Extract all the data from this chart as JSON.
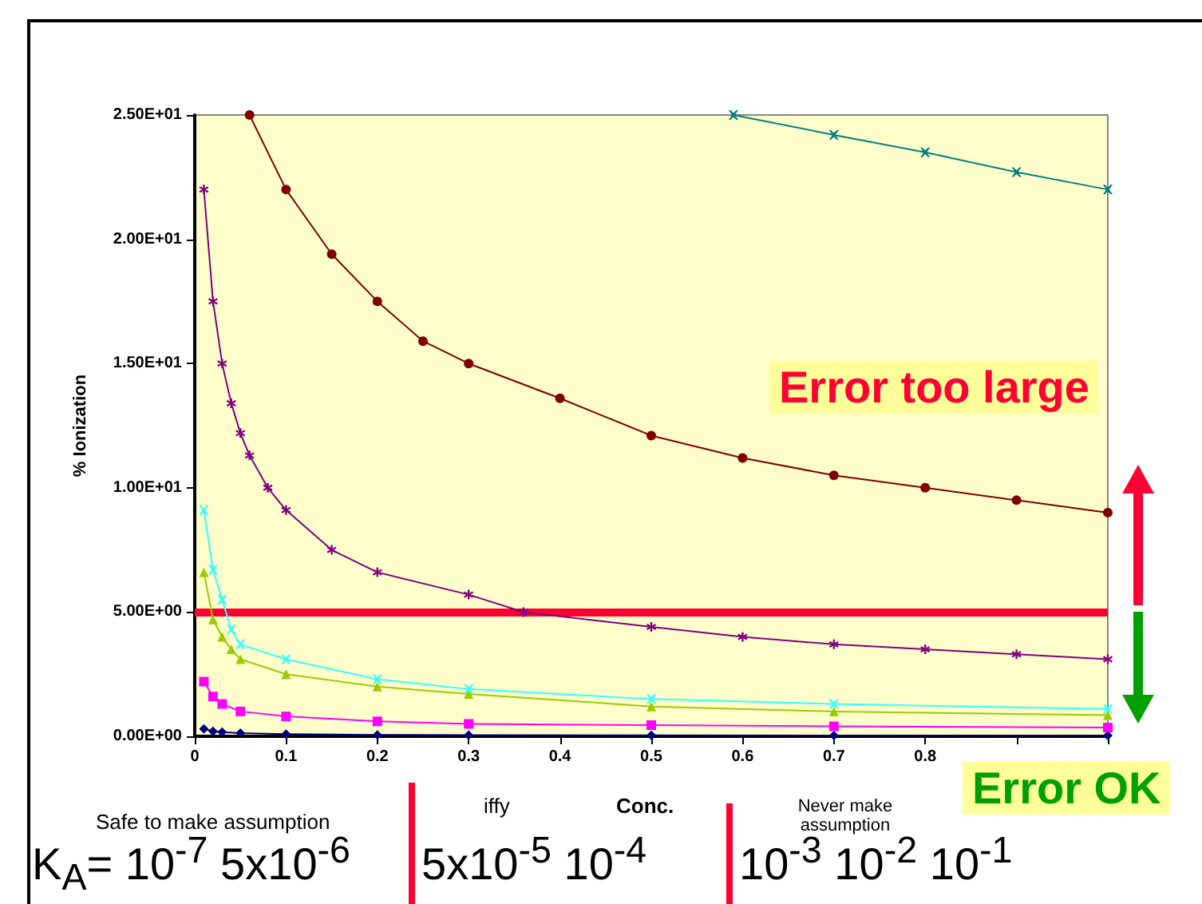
{
  "chart_data": {
    "type": "line",
    "xlabel": "Conc.",
    "ylabel": "% Ionization",
    "xlim": [
      0,
      1
    ],
    "xticks": [
      0,
      0.1,
      0.2,
      0.3,
      0.4,
      0.5,
      0.6,
      0.7,
      0.8,
      {
        "value": 0.9,
        "label": null
      },
      {
        "value": 1,
        "label": null
      }
    ],
    "ylim": [
      0,
      25
    ],
    "yticks": [
      {
        "value": 0,
        "label": "0.00E+00"
      },
      {
        "value": 5,
        "label": "5.00E+00"
      },
      {
        "value": 10,
        "label": "1.00E+01"
      },
      {
        "value": 15,
        "label": "1.50E+01"
      },
      {
        "value": 20,
        "label": "2.00E+01"
      },
      {
        "value": 25,
        "label": "2.50E+01"
      }
    ],
    "grid": false,
    "series": [
      {
        "color": "#000080",
        "marker": "diamond",
        "x": [
          0.01,
          0.02,
          0.03,
          0.05,
          0.1,
          0.2,
          0.3,
          0.5,
          0.7,
          1
        ],
        "values": [
          0.3,
          0.2,
          0.17,
          0.13,
          0.09,
          0.06,
          0.05,
          0.04,
          0.03,
          0.03
        ]
      },
      {
        "color": "#ff00ff",
        "marker": "square",
        "x": [
          0.01,
          0.02,
          0.03,
          0.05,
          0.1,
          0.2,
          0.3,
          0.5,
          0.7,
          1
        ],
        "values": [
          2.2,
          1.6,
          1.3,
          1.0,
          0.8,
          0.6,
          0.5,
          0.45,
          0.4,
          0.35
        ]
      },
      {
        "color": "#99cc00",
        "marker": "triangle",
        "x": [
          0.01,
          0.02,
          0.03,
          0.04,
          0.05,
          0.1,
          0.2,
          0.3,
          0.5,
          0.7,
          1
        ],
        "values": [
          6.6,
          4.7,
          4.0,
          3.5,
          3.1,
          2.5,
          2.0,
          1.7,
          1.2,
          1.0,
          0.85
        ]
      },
      {
        "color": "#33ffff",
        "marker": "cross",
        "x": [
          0.01,
          0.02,
          0.03,
          0.04,
          0.05,
          0.1,
          0.2,
          0.3,
          0.5,
          0.7,
          1
        ],
        "values": [
          9.1,
          6.7,
          5.5,
          4.3,
          3.7,
          3.1,
          2.3,
          1.9,
          1.5,
          1.3,
          1.1
        ]
      },
      {
        "color": "#800080",
        "marker": "star",
        "x": [
          0.01,
          0.02,
          0.03,
          0.04,
          0.05,
          0.06,
          0.08,
          0.1,
          0.15,
          0.2,
          0.3,
          0.36,
          0.5,
          0.6,
          0.7,
          0.8,
          0.9,
          1
        ],
        "values": [
          22,
          17.5,
          15,
          13.4,
          12.2,
          11.3,
          10,
          9.1,
          7.5,
          6.6,
          5.7,
          5.0,
          4.4,
          4.0,
          3.7,
          3.5,
          3.3,
          3.1
        ]
      },
      {
        "color": "#800000",
        "marker": "circle",
        "x": [
          0.06,
          0.1,
          0.15,
          0.2,
          0.25,
          0.3,
          0.4,
          0.5,
          0.6,
          0.7,
          0.8,
          0.9,
          1
        ],
        "values": [
          25,
          22,
          19.4,
          17.5,
          15.9,
          15,
          13.6,
          12.1,
          11.2,
          10.5,
          10,
          9.5,
          9
        ]
      },
      {
        "color": "#008080",
        "marker": "cross",
        "x": [
          0.59,
          0.7,
          0.8,
          0.9,
          1
        ],
        "values": [
          25,
          24.2,
          23.5,
          22.7,
          22
        ]
      }
    ],
    "ref_lines": [
      {
        "axis": "y",
        "value": 5,
        "color": "#ff0033"
      }
    ],
    "annotations": [
      "Error too large",
      "Error OK",
      "Safe to make assumption",
      "iffy",
      "Never make assumption",
      "K$_{A}$= 10$^{-7}$  5x10$^{-6}$ ",
      "5x10$^{-5}$   10$^{-4}$ ",
      "10$^{-3}$   10$^{-2}$  10$^{-1}$"
    ]
  }
}
